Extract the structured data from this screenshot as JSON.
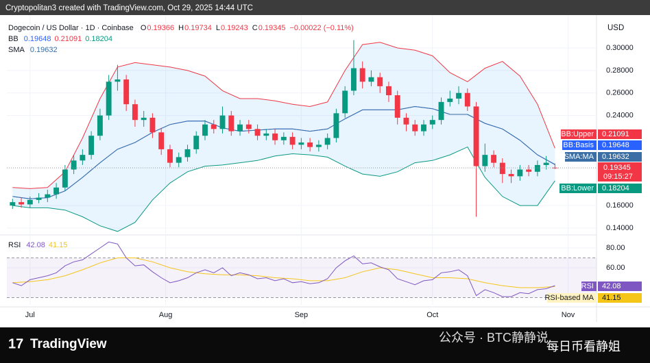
{
  "header": "Cryptopolitan3 created with TradingView.com, Oct 29, 2025 14:44 UTC",
  "brand": "TradingView",
  "watermark": [
    "公众号 · BTC静静说",
    "每日币看静姐"
  ],
  "chart_data": {
    "type": "candlestick",
    "title": "Dogecoin / US Dollar · 1D · Coinbase",
    "currency": "USD",
    "ohlc_labels": [
      "O",
      "H",
      "L",
      "C"
    ],
    "change": "−0.00022 (−0.11%)",
    "bb_label": "BB",
    "sma_label": "SMA",
    "rsi_label": "RSI",
    "countdown": "09:15:27",
    "tag_labels": {
      "upper": "BB:Upper",
      "basis": "BB:Basis",
      "sma": "SMA:MA",
      "lower": "BB:Lower",
      "rsi": "RSI",
      "rsi_ma": "RSI-based MA"
    },
    "up_color": "#089981",
    "down_color": "#f23645",
    "bb_colors": {
      "upper": "#f23645",
      "basis": "#2962ff",
      "lower": "#089981",
      "fill": "#2196f3",
      "sma": "#3a6ea5"
    },
    "rsi_colors": {
      "rsi": "#7e57c2",
      "rsi_ma": "#f5c518",
      "band": "#7e57c2"
    },
    "xlim": [
      -5.3,
      129.5
    ],
    "xticks": [
      {
        "value": 0,
        "label": "Jul"
      },
      {
        "value": 31,
        "label": "Aug"
      },
      {
        "value": 62,
        "label": "Sep"
      },
      {
        "value": 92,
        "label": "Oct"
      },
      {
        "value": 123,
        "label": "Nov"
      }
    ],
    "ylim": [
      0.1345,
      0.3292
    ],
    "yticks": [
      {
        "value": 0.3,
        "label": "0.30000"
      },
      {
        "value": 0.28,
        "label": "0.28000"
      },
      {
        "value": 0.26,
        "label": "0.26000"
      },
      {
        "value": 0.24,
        "label": "0.24000"
      },
      {
        "value": 0.16,
        "label": "0.16000"
      },
      {
        "value": 0.14,
        "label": "0.14000"
      }
    ],
    "rsi_ylim": [
      22.8,
      91.7
    ],
    "rsi_yticks": [
      {
        "value": 80,
        "label": "80.00"
      },
      {
        "value": 60,
        "label": "60.00"
      }
    ],
    "rsi_bands": [
      30,
      70
    ],
    "x": [
      -4,
      -2,
      0,
      2,
      4,
      6,
      8,
      10,
      12,
      14,
      16,
      18,
      20,
      22,
      24,
      26,
      28,
      30,
      32,
      34,
      36,
      38,
      40,
      42,
      44,
      46,
      48,
      50,
      52,
      54,
      56,
      58,
      60,
      62,
      64,
      66,
      68,
      70,
      72,
      74,
      76,
      78,
      80,
      82,
      84,
      86,
      88,
      90,
      92,
      94,
      96,
      98,
      100,
      102,
      104,
      106,
      108,
      110,
      112,
      114,
      116,
      118,
      120
    ],
    "open": [
      0.16,
      0.163,
      0.161,
      0.165,
      0.167,
      0.17,
      0.176,
      0.192,
      0.2,
      0.205,
      0.222,
      0.24,
      0.27,
      0.272,
      0.25,
      0.236,
      0.238,
      0.225,
      0.21,
      0.198,
      0.203,
      0.21,
      0.222,
      0.232,
      0.228,
      0.24,
      0.226,
      0.232,
      0.228,
      0.222,
      0.224,
      0.218,
      0.221,
      0.214,
      0.216,
      0.212,
      0.214,
      0.22,
      0.242,
      0.262,
      0.282,
      0.27,
      0.274,
      0.266,
      0.258,
      0.238,
      0.232,
      0.226,
      0.232,
      0.236,
      0.252,
      0.255,
      0.26,
      0.248,
      0.195,
      0.205,
      0.198,
      0.188,
      0.186,
      0.192,
      0.19,
      0.196,
      0.19366
    ],
    "high": [
      0.166,
      0.167,
      0.168,
      0.171,
      0.174,
      0.18,
      0.196,
      0.205,
      0.21,
      0.226,
      0.246,
      0.276,
      0.285,
      0.276,
      0.254,
      0.244,
      0.242,
      0.229,
      0.214,
      0.207,
      0.214,
      0.226,
      0.236,
      0.236,
      0.248,
      0.244,
      0.236,
      0.236,
      0.232,
      0.228,
      0.228,
      0.225,
      0.225,
      0.22,
      0.22,
      0.218,
      0.224,
      0.246,
      0.266,
      0.307,
      0.288,
      0.28,
      0.278,
      0.27,
      0.262,
      0.242,
      0.236,
      0.236,
      0.24,
      0.256,
      0.262,
      0.266,
      0.264,
      0.252,
      0.215,
      0.209,
      0.202,
      0.192,
      0.196,
      0.196,
      0.2,
      0.204,
      0.19734
    ],
    "low": [
      0.157,
      0.158,
      0.158,
      0.162,
      0.163,
      0.166,
      0.173,
      0.188,
      0.196,
      0.201,
      0.218,
      0.236,
      0.262,
      0.244,
      0.23,
      0.23,
      0.22,
      0.205,
      0.194,
      0.194,
      0.199,
      0.206,
      0.218,
      0.224,
      0.224,
      0.222,
      0.222,
      0.224,
      0.218,
      0.218,
      0.214,
      0.214,
      0.21,
      0.21,
      0.208,
      0.208,
      0.21,
      0.216,
      0.238,
      0.258,
      0.264,
      0.266,
      0.26,
      0.252,
      0.232,
      0.226,
      0.222,
      0.222,
      0.228,
      0.232,
      0.248,
      0.25,
      0.244,
      0.15,
      0.19,
      0.194,
      0.18,
      0.18,
      0.182,
      0.186,
      0.186,
      0.192,
      0.19243
    ],
    "close": [
      0.163,
      0.161,
      0.165,
      0.167,
      0.17,
      0.176,
      0.192,
      0.2,
      0.205,
      0.222,
      0.24,
      0.27,
      0.272,
      0.25,
      0.236,
      0.238,
      0.225,
      0.21,
      0.198,
      0.203,
      0.21,
      0.222,
      0.232,
      0.228,
      0.24,
      0.226,
      0.232,
      0.228,
      0.222,
      0.224,
      0.218,
      0.221,
      0.214,
      0.216,
      0.212,
      0.214,
      0.22,
      0.242,
      0.262,
      0.282,
      0.27,
      0.274,
      0.266,
      0.258,
      0.238,
      0.232,
      0.226,
      0.232,
      0.236,
      0.252,
      0.255,
      0.26,
      0.248,
      0.195,
      0.205,
      0.198,
      0.188,
      0.186,
      0.192,
      0.19,
      0.196,
      0.198,
      0.19345
    ],
    "line_x": [
      -4,
      0,
      4,
      8,
      12,
      16,
      20,
      24,
      28,
      32,
      36,
      40,
      44,
      48,
      52,
      56,
      60,
      64,
      68,
      72,
      76,
      80,
      84,
      88,
      92,
      96,
      100,
      104,
      108,
      112,
      116,
      120
    ],
    "bb_upper": [
      0.176,
      0.175,
      0.176,
      0.19,
      0.22,
      0.255,
      0.283,
      0.287,
      0.285,
      0.283,
      0.28,
      0.275,
      0.262,
      0.255,
      0.255,
      0.253,
      0.25,
      0.248,
      0.252,
      0.28,
      0.303,
      0.305,
      0.3,
      0.298,
      0.293,
      0.278,
      0.27,
      0.282,
      0.288,
      0.275,
      0.25,
      0.21091
    ],
    "bb_basis": [
      0.168,
      0.166,
      0.167,
      0.173,
      0.185,
      0.198,
      0.21,
      0.216,
      0.225,
      0.232,
      0.235,
      0.235,
      0.229,
      0.226,
      0.227,
      0.228,
      0.228,
      0.226,
      0.228,
      0.237,
      0.245,
      0.245,
      0.245,
      0.248,
      0.246,
      0.241,
      0.241,
      0.233,
      0.228,
      0.218,
      0.205,
      0.19648
    ],
    "bb_lower": [
      0.16,
      0.158,
      0.158,
      0.156,
      0.15,
      0.142,
      0.137,
      0.145,
      0.165,
      0.18,
      0.19,
      0.195,
      0.196,
      0.198,
      0.2,
      0.204,
      0.206,
      0.205,
      0.203,
      0.195,
      0.188,
      0.186,
      0.19,
      0.198,
      0.2,
      0.205,
      0.212,
      0.185,
      0.168,
      0.16,
      0.16,
      0.18204
    ],
    "sma": [
      0.168,
      0.166,
      0.167,
      0.173,
      0.185,
      0.198,
      0.21,
      0.216,
      0.225,
      0.232,
      0.235,
      0.235,
      0.229,
      0.226,
      0.227,
      0.228,
      0.228,
      0.226,
      0.228,
      0.237,
      0.245,
      0.245,
      0.245,
      0.248,
      0.246,
      0.241,
      0.241,
      0.233,
      0.228,
      0.218,
      0.205,
      0.19632
    ],
    "rsi": [
      45,
      42,
      48,
      50,
      52,
      55,
      62,
      66,
      68,
      74,
      80,
      86,
      84,
      70,
      62,
      63,
      56,
      50,
      45,
      47,
      50,
      55,
      58,
      55,
      60,
      52,
      55,
      53,
      49,
      50,
      47,
      49,
      45,
      46,
      44,
      45,
      49,
      60,
      67,
      72,
      64,
      65,
      61,
      58,
      49,
      46,
      43,
      47,
      48,
      55,
      56,
      58,
      52,
      32,
      38,
      35,
      31,
      31,
      35,
      34,
      38,
      39,
      42.08
    ],
    "rsi_ma": [
      45,
      46,
      48,
      52,
      58,
      65,
      70,
      70,
      66,
      60,
      56,
      54,
      53,
      53,
      52,
      50,
      49,
      47,
      47,
      50,
      56,
      60,
      58,
      54,
      50,
      50,
      49,
      45,
      42,
      40,
      40,
      41.15
    ]
  }
}
